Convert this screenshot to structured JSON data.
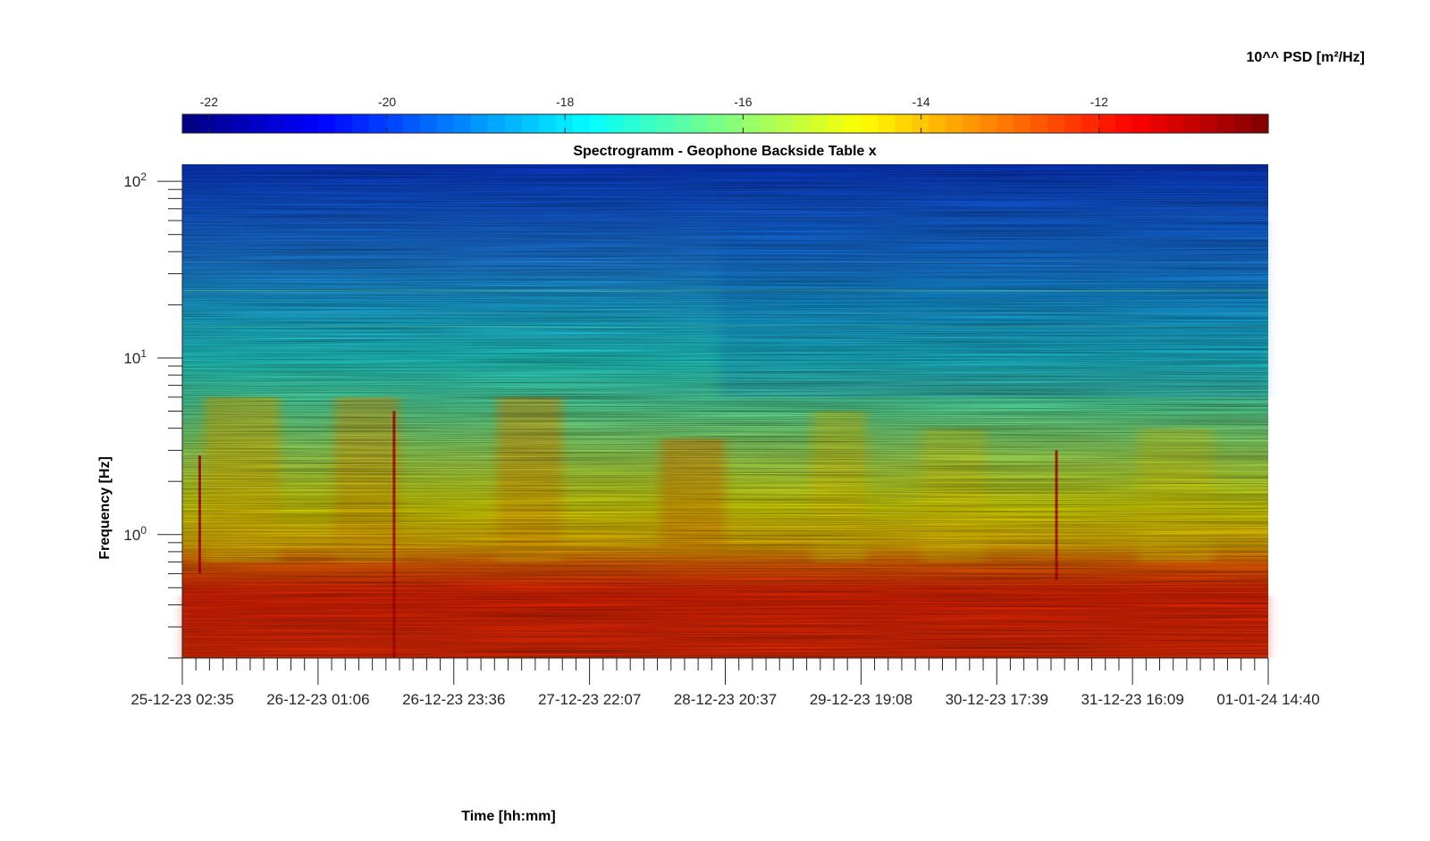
{
  "chart_data": {
    "type": "heatmap",
    "title": "Spectrogramm - Geophone Backside Table x",
    "xlabel": "Time [hh:mm]",
    "ylabel": "Frequency [Hz]",
    "x_ticks": [
      "25-12-23 02:35",
      "26-12-23 01:06",
      "26-12-23 23:36",
      "27-12-23 22:07",
      "28-12-23 20:37",
      "29-12-23 19:08",
      "30-12-23 17:39",
      "31-12-23 16:09",
      "01-01-24 14:40"
    ],
    "y_scale": "log",
    "y_range_hz": [
      0.2,
      125
    ],
    "y_ticks": [
      {
        "mantissa": "10",
        "exponent": "0",
        "value": 1
      },
      {
        "mantissa": "10",
        "exponent": "1",
        "value": 10
      },
      {
        "mantissa": "10",
        "exponent": "2",
        "value": 100
      }
    ],
    "colorbar": {
      "label": "10^^ PSD [m²/Hz]",
      "range": [
        -22.3,
        -10.1
      ],
      "ticks": [
        "-22",
        "-20",
        "-18",
        "-16",
        "-14",
        "-12"
      ],
      "tick_values": [
        -22,
        -20,
        -18,
        -16,
        -14,
        -12
      ],
      "colormap": "jet",
      "placement": "top"
    },
    "shown_level_ranges": [
      {
        "band": "above 50 Hz",
        "level": [
          -21,
          -19.5
        ]
      },
      {
        "band": "10 - 50 Hz",
        "level": [
          -19,
          -18
        ]
      },
      {
        "band": "1 - 10 Hz",
        "level": [
          -18,
          -15
        ]
      },
      {
        "band": "below 1 Hz",
        "level": [
          -13,
          -11
        ]
      }
    ]
  }
}
